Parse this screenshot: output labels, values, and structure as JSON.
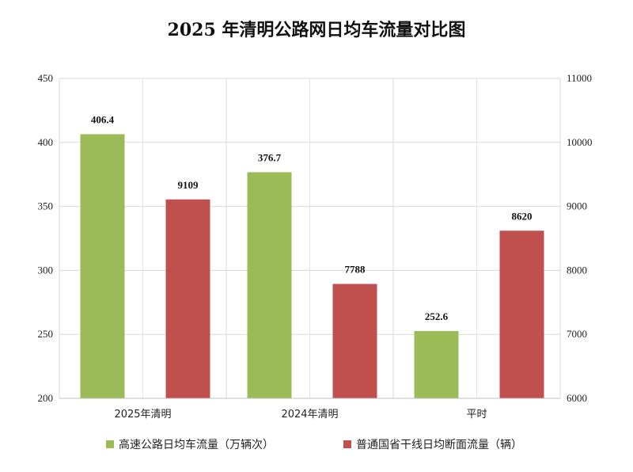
{
  "chart_data": {
    "type": "bar",
    "title": "2025 年清明公路网日均车流量对比图",
    "categories": [
      "2025年清明",
      "2024年清明",
      "平时"
    ],
    "series": [
      {
        "name": "高速公路日均车流量（万辆次）",
        "values": [
          406.4,
          376.7,
          252.6
        ],
        "axis": "left",
        "color": "#9bbb59"
      },
      {
        "name": "普通国省干线日均断面流量（辆）",
        "values": [
          9109,
          7788,
          8620
        ],
        "axis": "right",
        "color": "#c0504d"
      }
    ],
    "y_left": {
      "range": [
        200,
        450
      ],
      "ticks": [
        200,
        250,
        300,
        350,
        400,
        450
      ]
    },
    "y_right": {
      "range": [
        6000,
        11000
      ],
      "ticks": [
        6000,
        7000,
        8000,
        9000,
        10000,
        11000
      ]
    },
    "grid": true,
    "legend_position": "bottom"
  }
}
